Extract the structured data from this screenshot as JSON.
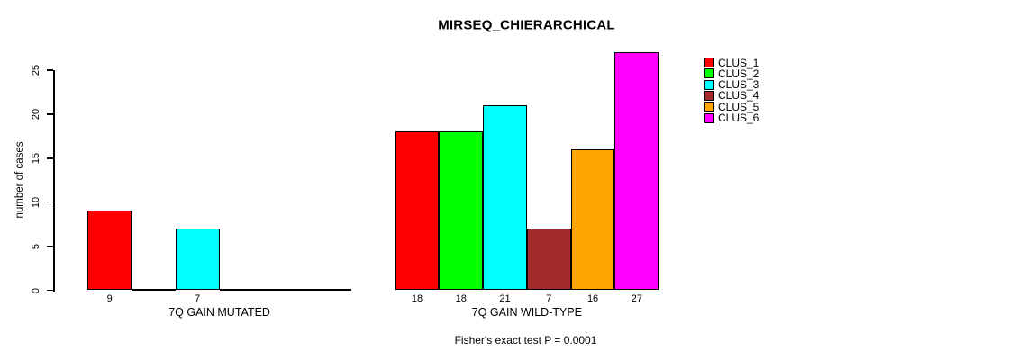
{
  "chart_data": {
    "type": "bar",
    "title": "MIRSEQ_CHIERARCHICAL",
    "ylabel": "number of cases",
    "xlabel": "",
    "ylim": [
      0,
      27.5
    ],
    "yticks": [
      0,
      5,
      10,
      15,
      20,
      25
    ],
    "grid": false,
    "legend_position": "top-right",
    "categories": [
      "7Q GAIN MUTATED",
      "7Q GAIN WILD-TYPE"
    ],
    "series": [
      {
        "name": "CLUS_1",
        "color": "#FF0000",
        "values": [
          9,
          18
        ]
      },
      {
        "name": "CLUS_2",
        "color": "#00FF00",
        "values": [
          0,
          18
        ]
      },
      {
        "name": "CLUS_3",
        "color": "#00FFFF",
        "values": [
          7,
          21
        ]
      },
      {
        "name": "CLUS_4",
        "color": "#A52A2A",
        "values": [
          0,
          7
        ]
      },
      {
        "name": "CLUS_5",
        "color": "#FFA500",
        "values": [
          0,
          16
        ]
      },
      {
        "name": "CLUS_6",
        "color": "#FF00FF",
        "values": [
          0,
          27
        ]
      }
    ],
    "bar_value_labels_shown_for_positive_values": true,
    "annotation": "Fisher's exact test P = 0.0001",
    "axis_color": "#000000",
    "bar_border_color": "#000000"
  }
}
